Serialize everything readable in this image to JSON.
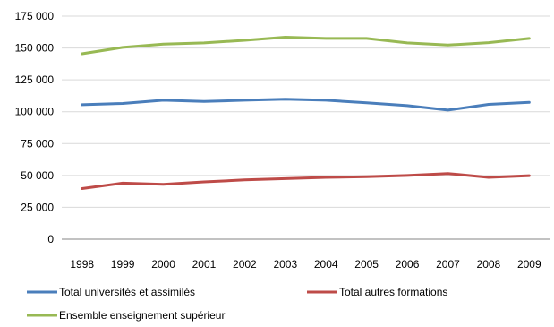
{
  "chart_data": {
    "type": "line",
    "title": "",
    "xlabel": "",
    "ylabel": "",
    "x": [
      "1998",
      "1999",
      "2000",
      "2001",
      "2002",
      "2003",
      "2004",
      "2005",
      "2006",
      "2007",
      "2008",
      "2009"
    ],
    "y_ticks": [
      {
        "value": 0,
        "label": "0"
      },
      {
        "value": 25000,
        "label": "25 000"
      },
      {
        "value": 50000,
        "label": "50 000"
      },
      {
        "value": 75000,
        "label": "75 000"
      },
      {
        "value": 100000,
        "label": "100 000"
      },
      {
        "value": 125000,
        "label": "125 000"
      },
      {
        "value": 150000,
        "label": "150 000"
      },
      {
        "value": 175000,
        "label": "175 000"
      }
    ],
    "ylim": [
      0,
      175000
    ],
    "grid": true,
    "legend_position": "bottom",
    "series": [
      {
        "name": "Total universités et assimilés",
        "color": "#4a7ebb",
        "values": [
          105500,
          106500,
          109000,
          108000,
          109000,
          109800,
          109000,
          107000,
          104800,
          101300,
          105800,
          107300
        ]
      },
      {
        "name": "Total autres formations",
        "color": "#be4b48",
        "values": [
          39700,
          44000,
          43000,
          45000,
          46500,
          47500,
          48500,
          49000,
          50000,
          51500,
          48500,
          49800
        ]
      },
      {
        "name": "Ensemble enseignement supérieur",
        "color": "#98b954",
        "values": [
          145500,
          150500,
          153000,
          154000,
          156000,
          158500,
          157500,
          157500,
          154000,
          152300,
          154200,
          157500
        ]
      }
    ]
  }
}
